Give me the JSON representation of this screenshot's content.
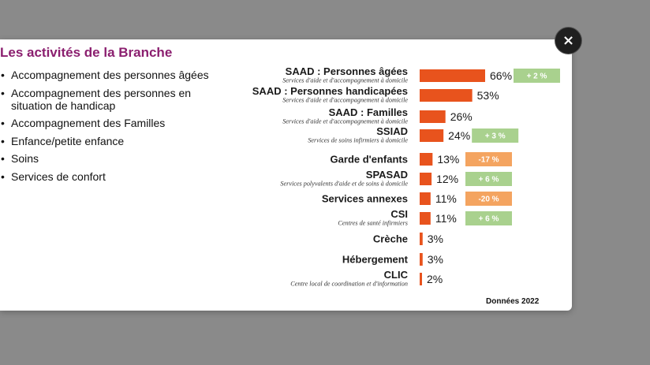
{
  "modal": {
    "close_label": "×",
    "title": "Les activités de la Branche",
    "activities": [
      "Accompagnement des personnes âgées",
      "Accompagnement des personnes en situation de handicap",
      "Accompagnement des Familles",
      "Enfance/petite enfance",
      "Soins",
      "Services de confort"
    ],
    "source_note": "Données 2022"
  },
  "colors": {
    "bar": "#e8531d",
    "change_positive": "#a9d18e",
    "change_negative": "#f4a460",
    "title": "#8b1f6f"
  },
  "chart_data": {
    "type": "bar",
    "orientation": "horizontal",
    "categories": [
      "SAAD : Personnes âgées",
      "SAAD : Personnes handicapées",
      "SAAD : Familles",
      "SSIAD",
      "Garde d'enfants",
      "SPASAD",
      "Services annexes",
      "CSI",
      "Crèche",
      "Hébergement",
      "CLIC"
    ],
    "subtitles": [
      "Services d'aide et d'accompagnement à domicile",
      "Services d'aide et d'accompagnement à domicile",
      "Services d'aide et d'accompagnement à domicile",
      "Services de soins infirmiers à domicile",
      "",
      "Services polyvalents d'aide et de soins à domicile",
      "",
      "Centres de santé infirmiers",
      "",
      "",
      "Centre local de coordination et d'information"
    ],
    "values": [
      66,
      53,
      26,
      24,
      13,
      12,
      11,
      11,
      3,
      3,
      2
    ],
    "value_labels": [
      "66%",
      "53%",
      "26%",
      "24%",
      "13%",
      "12%",
      "11%",
      "11%",
      "3%",
      "3%",
      "2%"
    ],
    "changes": [
      "+ 2 %",
      "",
      "",
      "+ 3 %",
      "-17 %",
      "+ 6 %",
      "-20 %",
      "+ 6 %",
      "",
      "",
      ""
    ],
    "change_signs": [
      "positive",
      "",
      "",
      "positive",
      "negative",
      "positive",
      "negative",
      "positive",
      "",
      "",
      ""
    ],
    "xlim": [
      0,
      66
    ],
    "grid": false,
    "legend": "none"
  }
}
